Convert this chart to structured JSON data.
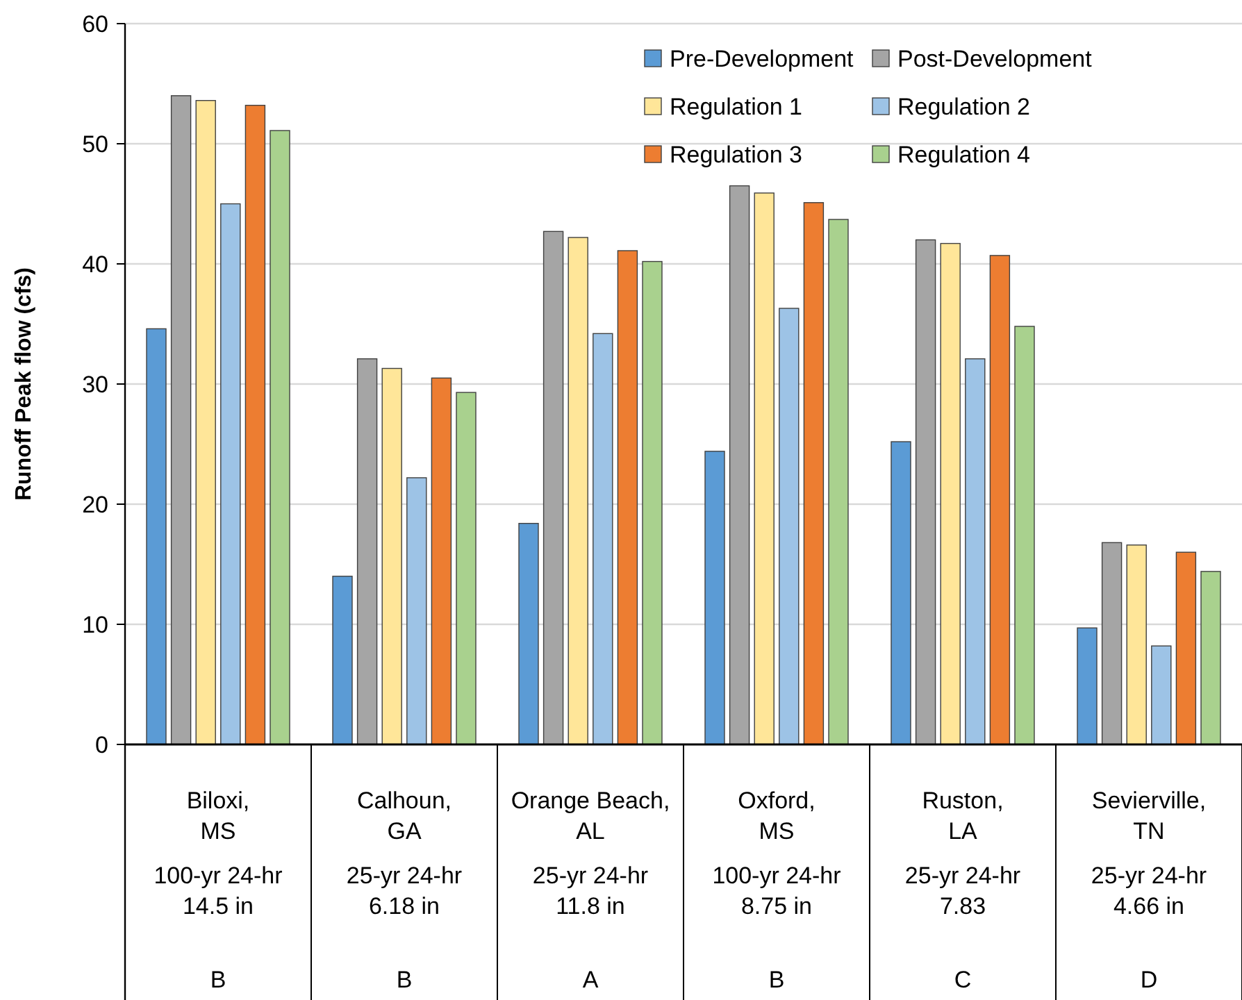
{
  "chart_data": {
    "type": "bar",
    "ylabel": "Runoff Peak flow (cfs)",
    "categories": [
      "Biloxi,\nMS\n100-yr 24-hr\n14.5 in\nB",
      "Calhoun,\nGA\n25-yr 24-hr\n6.18 in\nB",
      "Orange Beach,\nAL\n25-yr 24-hr\n11.8 in\nA",
      "Oxford,\nMS\n100-yr 24-hr\n8.75 in\nB",
      "Ruston,\nLA\n25-yr 24-hr\n7.83\nC",
      "Sevierville,\nTN\n25-yr 24-hr\n4.66 in\nD"
    ],
    "series": [
      {
        "name": "Pre-Development",
        "color": "#5b9bd5",
        "values": [
          34.6,
          14.0,
          18.4,
          24.4,
          25.2,
          9.7
        ]
      },
      {
        "name": "Post-Development",
        "color": "#a5a5a5",
        "values": [
          54.0,
          32.1,
          42.7,
          46.5,
          42.0,
          16.8
        ]
      },
      {
        "name": "Regulation 1",
        "color": "#ffe699",
        "values": [
          53.6,
          31.3,
          42.2,
          45.9,
          41.7,
          16.6
        ]
      },
      {
        "name": "Regulation 2",
        "color": "#9dc3e6",
        "values": [
          45.0,
          22.2,
          34.2,
          36.3,
          32.1,
          8.2
        ]
      },
      {
        "name": "Regulation 3",
        "color": "#ed7d31",
        "values": [
          53.2,
          30.5,
          41.1,
          45.1,
          40.7,
          16.0
        ]
      },
      {
        "name": "Regulation 4",
        "color": "#a9d18e",
        "values": [
          51.1,
          29.3,
          40.2,
          43.7,
          34.8,
          14.4
        ]
      }
    ],
    "ylim": [
      0,
      60
    ],
    "yticks": [
      0,
      10,
      20,
      30,
      40,
      50,
      60
    ],
    "grid": "y",
    "legend": "top right"
  }
}
